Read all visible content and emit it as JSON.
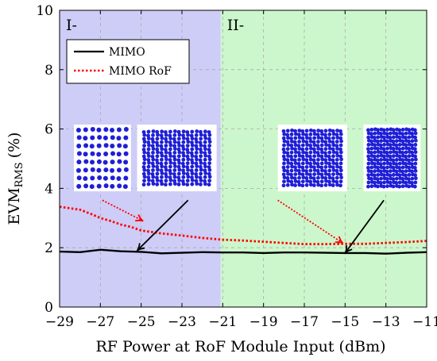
{
  "chart_data": {
    "type": "line",
    "xlabel": "RF Power at RoF Module Input (dBm)",
    "ylabel": {
      "main": "EVM",
      "sub": "RMS",
      "unit": "(%)"
    },
    "xlim": [
      -29,
      -11
    ],
    "ylim": [
      0,
      10
    ],
    "xticks": [
      -29,
      -27,
      -25,
      -23,
      -21,
      -19,
      -17,
      -15,
      -13,
      -11
    ],
    "yticks": [
      0,
      2,
      4,
      6,
      8,
      10
    ],
    "xtick_labels": [
      "−29",
      "−27",
      "−25",
      "−23",
      "−21",
      "−19",
      "−17",
      "−15",
      "−13",
      "−11"
    ],
    "ytick_labels": [
      "0",
      "2",
      "4",
      "6",
      "8",
      "10"
    ],
    "grid": true,
    "legend_position": "top-left",
    "regions": [
      {
        "label": "I-",
        "x_start": -29,
        "x_end": -21.1,
        "color": "#cdcdf7"
      },
      {
        "label": "II-",
        "x_start": -21.1,
        "x_end": -11,
        "color": "#ccf7cc"
      }
    ],
    "series": [
      {
        "name": "MIMO",
        "color": "#000000",
        "style": "solid",
        "x": [
          -29,
          -28,
          -27,
          -26,
          -25,
          -24,
          -23,
          -22,
          -21,
          -20,
          -19,
          -18,
          -17,
          -16,
          -15,
          -14,
          -13,
          -12,
          -11
        ],
        "y": [
          1.87,
          1.85,
          1.93,
          1.88,
          1.86,
          1.81,
          1.83,
          1.85,
          1.84,
          1.84,
          1.82,
          1.84,
          1.84,
          1.83,
          1.82,
          1.82,
          1.8,
          1.83,
          1.85
        ]
      },
      {
        "name": "MIMO RoF",
        "color": "#ff0000",
        "style": "dotted",
        "x": [
          -29,
          -28,
          -27.5,
          -27,
          -26.5,
          -26,
          -25.5,
          -25,
          -24,
          -23,
          -22,
          -21,
          -20,
          -19,
          -18,
          -17,
          -16,
          -15,
          -14,
          -13,
          -12,
          -11
        ],
        "y": [
          3.38,
          3.28,
          3.15,
          3.0,
          2.9,
          2.78,
          2.7,
          2.58,
          2.48,
          2.41,
          2.33,
          2.27,
          2.24,
          2.2,
          2.16,
          2.12,
          2.12,
          2.13,
          2.13,
          2.16,
          2.19,
          2.23
        ]
      }
    ],
    "annotations": [
      {
        "kind": "constellation",
        "density": 8,
        "x0": -28.3,
        "x1": -25.5,
        "y0": 3.9,
        "y1": 6.15
      },
      {
        "kind": "constellation",
        "density": 16,
        "x0": -25.2,
        "x1": -21.3,
        "y0": 3.9,
        "y1": 6.15
      },
      {
        "kind": "constellation",
        "density": 16,
        "x0": -18.3,
        "x1": -14.9,
        "y0": 3.9,
        "y1": 6.15
      },
      {
        "kind": "constellation",
        "density": 16,
        "x0": -14.1,
        "x1": -11.3,
        "y0": 3.9,
        "y1": 6.15
      }
    ],
    "arrows": [
      {
        "color": "#ff0000",
        "style": "dotted",
        "from": [
          -26.9,
          3.6
        ],
        "to": [
          -24.9,
          2.9
        ]
      },
      {
        "color": "#000000",
        "style": "solid",
        "from": [
          -22.7,
          3.6
        ],
        "to": [
          -25.2,
          1.9
        ]
      },
      {
        "color": "#ff0000",
        "style": "dotted",
        "from": [
          -18.3,
          3.6
        ],
        "to": [
          -15.1,
          2.15
        ]
      },
      {
        "color": "#000000",
        "style": "solid",
        "from": [
          -13.1,
          3.6
        ],
        "to": [
          -15.0,
          1.82
        ]
      }
    ]
  }
}
